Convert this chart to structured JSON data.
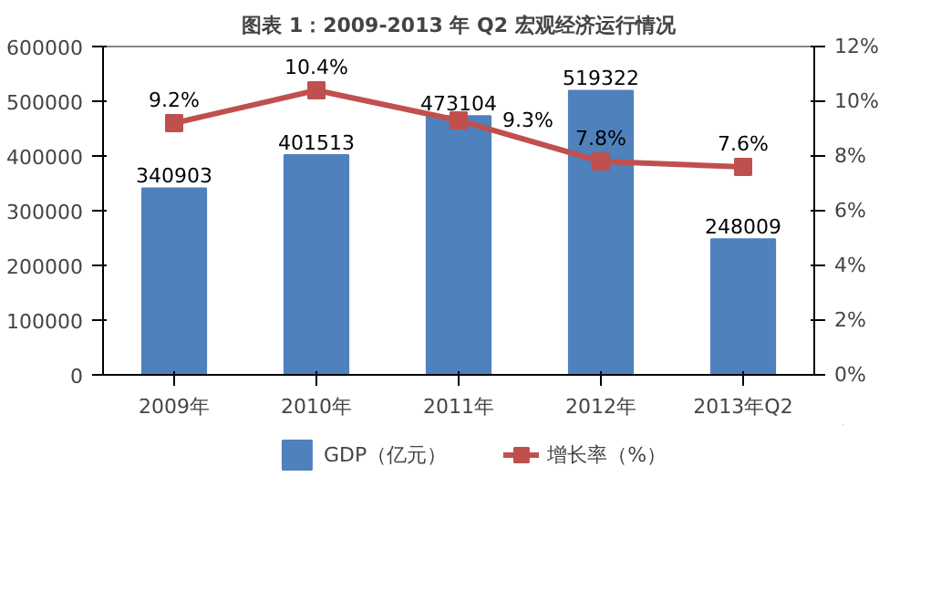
{
  "chart_data": {
    "type": "bar",
    "title": "图表 1：2009-2013 年 Q2 宏观经济运行情况",
    "categories": [
      "2009年",
      "2010年",
      "2011年",
      "2012年",
      "2013年Q2"
    ],
    "series": [
      {
        "name": "GDP（亿元）",
        "color": "#4f81bd",
        "values": [
          340903,
          401513,
          473104,
          519322,
          248009
        ],
        "value_labels": [
          "340903",
          "401513",
          "473104",
          "519322",
          "248009"
        ]
      },
      {
        "name": "增长率（%）",
        "type": "line",
        "axis": "y2",
        "color": "#c0504d",
        "marker": "square",
        "values": [
          9.2,
          10.4,
          9.3,
          7.8,
          7.6
        ],
        "value_labels": [
          "9.2%",
          "10.4%",
          "9.3%",
          "7.8%",
          "7.6%"
        ]
      }
    ],
    "ylim": [
      0,
      600000
    ],
    "yticks": [
      0,
      100000,
      200000,
      300000,
      400000,
      500000,
      600000
    ],
    "y2lim": [
      0,
      12
    ],
    "y2ticks": [
      {
        "value": 0,
        "label": "0%"
      },
      {
        "value": 2,
        "label": "2%"
      },
      {
        "value": 4,
        "label": "4%"
      },
      {
        "value": 6,
        "label": "6%"
      },
      {
        "value": 8,
        "label": "8%"
      },
      {
        "value": 10,
        "label": "10%"
      },
      {
        "value": 12,
        "label": "12%"
      }
    ],
    "grid": false,
    "legend": "bottom"
  }
}
